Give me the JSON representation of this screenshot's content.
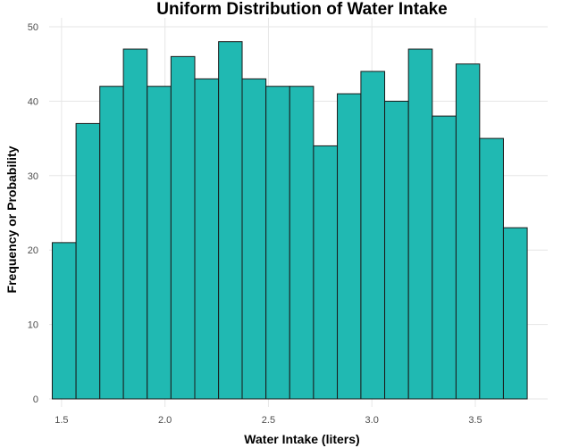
{
  "chart_data": {
    "type": "bar",
    "subtype": "histogram",
    "title": "Uniform Distribution of Water Intake",
    "xlabel": "Water Intake (liters)",
    "ylabel": "Frequency or Probability",
    "xlim": [
      1.44,
      3.85
    ],
    "ylim": [
      0,
      50
    ],
    "x_ticks": [
      "1.5",
      "2.0",
      "2.5",
      "3.0",
      "3.5"
    ],
    "x_tick_values": [
      1.5,
      2.0,
      2.5,
      3.0,
      3.5
    ],
    "y_ticks": [
      "0",
      "10",
      "20",
      "30",
      "40",
      "50"
    ],
    "y_tick_values": [
      0,
      10,
      20,
      30,
      40,
      50
    ],
    "grid": true,
    "bar_color": "#20B9B2",
    "edge_color": "#1a1a1a",
    "bin_start": 1.455,
    "bin_width": 0.1148,
    "bins": [
      {
        "start": 1.455,
        "end": 1.57,
        "count": 21
      },
      {
        "start": 1.57,
        "end": 1.685,
        "count": 37
      },
      {
        "start": 1.685,
        "end": 1.799,
        "count": 42
      },
      {
        "start": 1.799,
        "end": 1.914,
        "count": 47
      },
      {
        "start": 1.914,
        "end": 2.029,
        "count": 42
      },
      {
        "start": 2.029,
        "end": 2.144,
        "count": 46
      },
      {
        "start": 2.144,
        "end": 2.259,
        "count": 43
      },
      {
        "start": 2.259,
        "end": 2.373,
        "count": 48
      },
      {
        "start": 2.373,
        "end": 2.488,
        "count": 43
      },
      {
        "start": 2.488,
        "end": 2.603,
        "count": 42
      },
      {
        "start": 2.603,
        "end": 2.718,
        "count": 42
      },
      {
        "start": 2.718,
        "end": 2.833,
        "count": 34
      },
      {
        "start": 2.833,
        "end": 2.947,
        "count": 41
      },
      {
        "start": 2.947,
        "end": 3.062,
        "count": 44
      },
      {
        "start": 3.062,
        "end": 3.177,
        "count": 40
      },
      {
        "start": 3.177,
        "end": 3.292,
        "count": 47
      },
      {
        "start": 3.292,
        "end": 3.407,
        "count": 38
      },
      {
        "start": 3.407,
        "end": 3.521,
        "count": 45
      },
      {
        "start": 3.521,
        "end": 3.636,
        "count": 35
      },
      {
        "start": 3.636,
        "end": 3.751,
        "count": 23
      }
    ]
  }
}
